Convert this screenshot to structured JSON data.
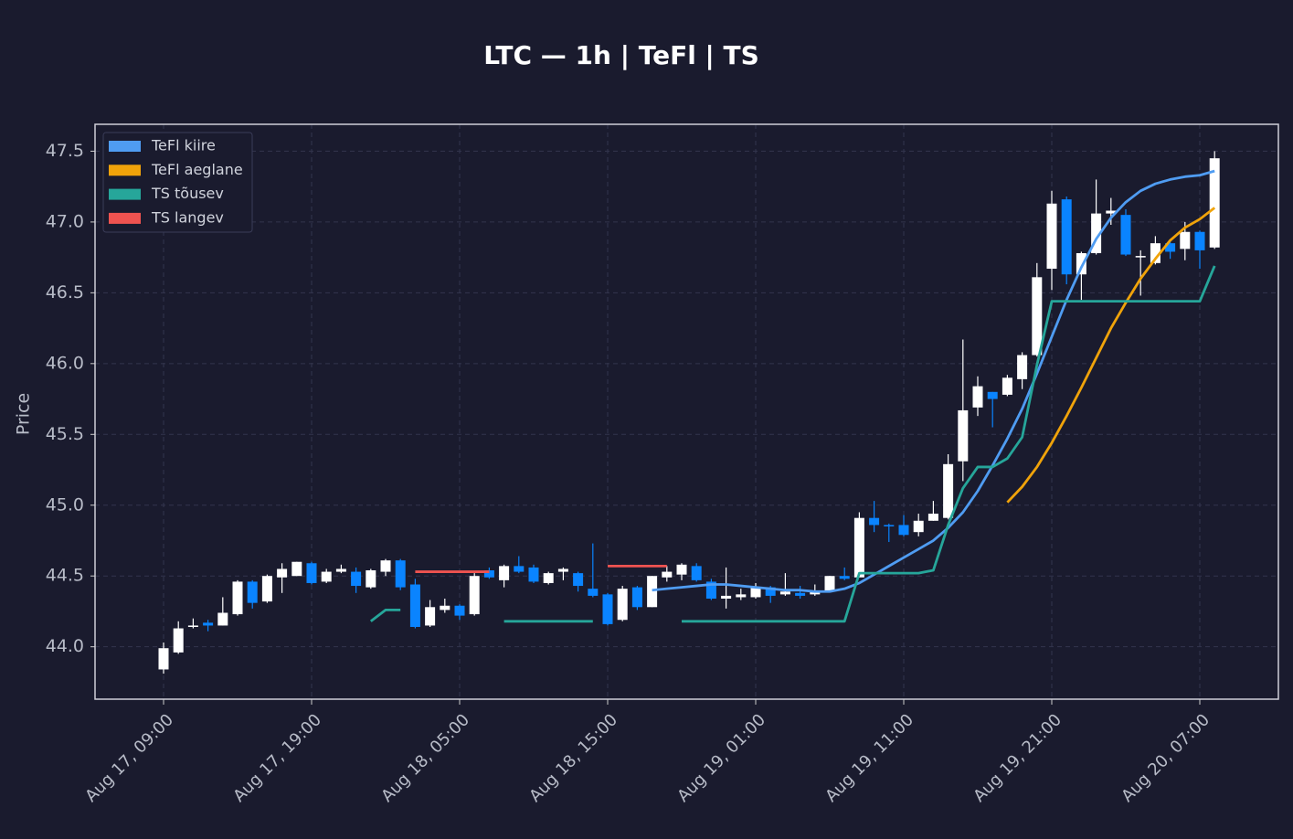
{
  "chart_data": {
    "type": "candlestick",
    "title": "LTC — 1h  |  TeFl  |  TS",
    "y_label": "Price",
    "x": [
      "Aug 17, 09:00",
      "Aug 17, 10:00",
      "Aug 17, 11:00",
      "Aug 17, 12:00",
      "Aug 17, 13:00",
      "Aug 17, 14:00",
      "Aug 17, 15:00",
      "Aug 17, 16:00",
      "Aug 17, 17:00",
      "Aug 17, 18:00",
      "Aug 17, 19:00",
      "Aug 17, 20:00",
      "Aug 17, 21:00",
      "Aug 17, 22:00",
      "Aug 17, 23:00",
      "Aug 18, 00:00",
      "Aug 18, 01:00",
      "Aug 18, 02:00",
      "Aug 18, 03:00",
      "Aug 18, 04:00",
      "Aug 18, 05:00",
      "Aug 18, 06:00",
      "Aug 18, 07:00",
      "Aug 18, 08:00",
      "Aug 18, 09:00",
      "Aug 18, 10:00",
      "Aug 18, 11:00",
      "Aug 18, 12:00",
      "Aug 18, 13:00",
      "Aug 18, 14:00",
      "Aug 18, 15:00",
      "Aug 18, 16:00",
      "Aug 18, 17:00",
      "Aug 18, 18:00",
      "Aug 18, 19:00",
      "Aug 18, 20:00",
      "Aug 18, 21:00",
      "Aug 18, 22:00",
      "Aug 18, 23:00",
      "Aug 19, 00:00",
      "Aug 19, 01:00",
      "Aug 19, 02:00",
      "Aug 19, 03:00",
      "Aug 19, 04:00",
      "Aug 19, 05:00",
      "Aug 19, 06:00",
      "Aug 19, 07:00",
      "Aug 19, 08:00",
      "Aug 19, 09:00",
      "Aug 19, 10:00",
      "Aug 19, 11:00",
      "Aug 19, 12:00",
      "Aug 19, 13:00",
      "Aug 19, 14:00",
      "Aug 19, 15:00",
      "Aug 19, 16:00",
      "Aug 19, 17:00",
      "Aug 19, 18:00",
      "Aug 19, 19:00",
      "Aug 19, 20:00",
      "Aug 19, 21:00",
      "Aug 19, 22:00",
      "Aug 19, 23:00",
      "Aug 20, 00:00",
      "Aug 20, 01:00",
      "Aug 20, 02:00",
      "Aug 20, 03:00",
      "Aug 20, 04:00",
      "Aug 20, 05:00",
      "Aug 20, 06:00",
      "Aug 20, 07:00",
      "Aug 20, 08:00"
    ],
    "open": [
      43.84,
      43.96,
      44.14,
      44.17,
      44.15,
      44.23,
      44.46,
      44.32,
      44.49,
      44.5,
      44.59,
      44.46,
      44.53,
      44.53,
      44.42,
      44.53,
      44.61,
      44.44,
      44.15,
      44.26,
      44.29,
      44.23,
      44.54,
      44.47,
      44.57,
      44.56,
      44.45,
      44.53,
      44.52,
      44.41,
      44.37,
      44.19,
      44.42,
      44.28,
      44.49,
      44.51,
      44.57,
      44.46,
      44.34,
      44.35,
      44.35,
      44.42,
      44.37,
      44.38,
      44.37,
      44.39,
      44.5,
      44.49,
      44.91,
      44.86,
      44.86,
      44.81,
      44.89,
      44.91,
      45.31,
      45.69,
      45.8,
      45.78,
      45.89,
      46.06,
      46.67,
      47.16,
      46.63,
      46.78,
      47.06,
      47.05,
      46.75,
      46.71,
      46.85,
      46.81,
      46.93,
      46.82
    ],
    "high": [
      44.03,
      44.18,
      44.2,
      44.19,
      44.35,
      44.47,
      44.47,
      44.51,
      44.59,
      44.6,
      44.6,
      44.55,
      44.58,
      44.56,
      44.55,
      44.62,
      44.62,
      44.48,
      44.33,
      44.34,
      44.3,
      44.52,
      44.56,
      44.58,
      44.64,
      44.58,
      44.53,
      44.56,
      44.53,
      44.73,
      44.38,
      44.43,
      44.43,
      44.5,
      44.57,
      44.59,
      44.59,
      44.48,
      44.56,
      44.41,
      44.45,
      44.43,
      44.52,
      44.43,
      44.44,
      44.5,
      44.56,
      44.95,
      45.03,
      44.87,
      44.93,
      44.94,
      45.03,
      45.36,
      46.17,
      45.91,
      45.8,
      45.92,
      46.08,
      46.71,
      47.22,
      47.18,
      46.79,
      47.3,
      47.17,
      47.09,
      46.8,
      46.9,
      46.88,
      47.0,
      46.94,
      47.5
    ],
    "low": [
      43.81,
      43.95,
      44.13,
      44.11,
      44.15,
      44.22,
      44.27,
      44.31,
      44.38,
      44.5,
      44.44,
      44.45,
      44.52,
      44.38,
      44.41,
      44.5,
      44.4,
      44.13,
      44.14,
      44.24,
      44.19,
      44.22,
      44.48,
      44.42,
      44.52,
      44.45,
      44.44,
      44.47,
      44.39,
      44.35,
      44.15,
      44.18,
      44.26,
      44.28,
      44.46,
      44.47,
      44.46,
      44.33,
      44.27,
      44.33,
      44.34,
      44.31,
      44.36,
      44.34,
      44.36,
      44.39,
      44.47,
      44.49,
      44.81,
      44.74,
      44.78,
      44.78,
      44.89,
      44.9,
      45.17,
      45.63,
      45.55,
      45.77,
      45.82,
      46.05,
      46.52,
      46.56,
      46.45,
      46.77,
      46.98,
      46.76,
      46.48,
      46.7,
      46.74,
      46.73,
      46.67,
      46.81
    ],
    "close": [
      43.99,
      44.13,
      44.15,
      44.15,
      44.24,
      44.46,
      44.31,
      44.5,
      44.55,
      44.6,
      44.45,
      44.53,
      44.55,
      44.43,
      44.54,
      44.61,
      44.42,
      44.14,
      44.28,
      44.29,
      44.22,
      44.5,
      44.49,
      44.57,
      44.53,
      44.46,
      44.52,
      44.55,
      44.43,
      44.36,
      44.16,
      44.41,
      44.28,
      44.5,
      44.53,
      44.58,
      44.47,
      44.34,
      44.36,
      44.37,
      44.42,
      44.36,
      44.39,
      44.36,
      44.39,
      44.5,
      44.48,
      44.91,
      44.86,
      44.85,
      44.79,
      44.89,
      44.94,
      45.29,
      45.67,
      45.84,
      45.75,
      45.9,
      46.06,
      46.61,
      47.13,
      46.63,
      46.78,
      47.06,
      47.08,
      46.77,
      46.76,
      46.85,
      46.79,
      46.93,
      46.8,
      47.45
    ],
    "up_color": "#ffffff",
    "down_color": "#0a84ff",
    "series": [
      {
        "name": "TeFl kiire",
        "color": "#4f9cf2",
        "values": [
          null,
          null,
          null,
          null,
          null,
          null,
          null,
          null,
          null,
          null,
          null,
          null,
          null,
          null,
          null,
          null,
          null,
          null,
          null,
          null,
          null,
          null,
          null,
          null,
          null,
          null,
          null,
          null,
          null,
          null,
          null,
          null,
          null,
          44.4,
          44.41,
          44.42,
          44.43,
          44.44,
          44.44,
          44.43,
          44.42,
          44.41,
          44.4,
          44.4,
          44.39,
          44.39,
          44.41,
          44.45,
          44.51,
          44.57,
          44.63,
          44.69,
          44.75,
          44.84,
          44.95,
          45.1,
          45.28,
          45.47,
          45.68,
          45.93,
          46.19,
          46.45,
          46.68,
          46.88,
          47.03,
          47.14,
          47.22,
          47.27,
          47.3,
          47.32,
          47.33,
          47.36
        ]
      },
      {
        "name": "TeFl aeglane",
        "color": "#f0a30a",
        "values": [
          null,
          null,
          null,
          null,
          null,
          null,
          null,
          null,
          null,
          null,
          null,
          null,
          null,
          null,
          null,
          null,
          null,
          null,
          null,
          null,
          null,
          null,
          null,
          null,
          null,
          null,
          null,
          null,
          null,
          null,
          null,
          null,
          null,
          null,
          null,
          null,
          null,
          null,
          null,
          null,
          null,
          null,
          null,
          null,
          null,
          null,
          null,
          null,
          null,
          null,
          null,
          null,
          null,
          null,
          null,
          null,
          null,
          45.02,
          45.13,
          45.27,
          45.44,
          45.63,
          45.83,
          46.04,
          46.25,
          46.43,
          46.6,
          46.74,
          46.87,
          46.96,
          47.02,
          47.1
        ]
      },
      {
        "name": "TS tõusev",
        "color": "#26a69a",
        "values": [
          null,
          null,
          null,
          null,
          null,
          null,
          null,
          null,
          null,
          null,
          null,
          null,
          null,
          null,
          44.18,
          44.26,
          44.26,
          null,
          null,
          null,
          null,
          null,
          null,
          44.18,
          44.18,
          44.18,
          44.18,
          44.18,
          44.18,
          44.18,
          null,
          null,
          null,
          null,
          null,
          44.18,
          44.18,
          44.18,
          44.18,
          44.18,
          44.18,
          44.18,
          44.18,
          44.18,
          44.18,
          44.18,
          44.18,
          44.52,
          44.52,
          44.52,
          44.52,
          44.52,
          44.54,
          44.86,
          45.12,
          45.27,
          45.27,
          45.33,
          45.48,
          45.99,
          46.44,
          46.44,
          46.44,
          46.44,
          46.44,
          46.44,
          46.44,
          46.44,
          46.44,
          46.44,
          46.44,
          46.69
        ]
      },
      {
        "name": "TS langev",
        "color": "#ef5350",
        "values": [
          null,
          null,
          null,
          null,
          null,
          null,
          null,
          null,
          null,
          null,
          null,
          null,
          null,
          null,
          null,
          null,
          null,
          44.53,
          44.53,
          44.53,
          44.53,
          44.53,
          44.53,
          null,
          null,
          null,
          null,
          null,
          null,
          null,
          44.57,
          44.57,
          44.57,
          44.57,
          44.57,
          null,
          null,
          null,
          null,
          null,
          null,
          null,
          null,
          null,
          null,
          null,
          null,
          null,
          null,
          null,
          null,
          null,
          null,
          null,
          null,
          null,
          null,
          null,
          null,
          null,
          null,
          null,
          null,
          null,
          null,
          null,
          null,
          null,
          null,
          null,
          null,
          null
        ]
      }
    ],
    "ylim": [
      43.63,
      47.69
    ],
    "yticks": [
      {
        "value": 44.0,
        "label": "44.0"
      },
      {
        "value": 44.5,
        "label": "44.5"
      },
      {
        "value": 45.0,
        "label": "45.0"
      },
      {
        "value": 45.5,
        "label": "45.5"
      },
      {
        "value": 46.0,
        "label": "46.0"
      },
      {
        "value": 46.5,
        "label": "46.5"
      },
      {
        "value": 47.0,
        "label": "47.0"
      },
      {
        "value": 47.5,
        "label": "47.5"
      }
    ],
    "xticks": [
      "Aug 17, 09:00",
      "Aug 17, 19:00",
      "Aug 18, 05:00",
      "Aug 18, 15:00",
      "Aug 19, 01:00",
      "Aug 19, 11:00",
      "Aug 19, 21:00",
      "Aug 20, 07:00"
    ],
    "grid": true,
    "legend": "upper left"
  }
}
